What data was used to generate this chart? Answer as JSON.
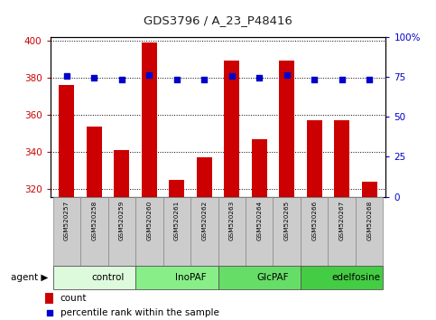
{
  "title": "GDS3796 / A_23_P48416",
  "samples": [
    "GSM520257",
    "GSM520258",
    "GSM520259",
    "GSM520260",
    "GSM520261",
    "GSM520262",
    "GSM520263",
    "GSM520264",
    "GSM520265",
    "GSM520266",
    "GSM520267",
    "GSM520268"
  ],
  "counts": [
    376,
    354,
    341,
    399,
    325,
    337,
    389,
    347,
    389,
    357,
    357,
    324
  ],
  "percentiles": [
    75.5,
    74.5,
    73.5,
    76.0,
    73.5,
    73.5,
    75.5,
    74.5,
    76.0,
    73.5,
    73.5,
    73.5
  ],
  "bar_color": "#cc0000",
  "dot_color": "#0000cc",
  "ylim_left": [
    316,
    402
  ],
  "ylim_right": [
    0,
    100
  ],
  "yticks_left": [
    320,
    340,
    360,
    380,
    400
  ],
  "yticks_right": [
    0,
    25,
    50,
    75,
    100
  ],
  "groups": [
    {
      "label": "control",
      "start": 0,
      "end": 3,
      "color": "#ddfadd"
    },
    {
      "label": "InoPAF",
      "start": 3,
      "end": 6,
      "color": "#88ee88"
    },
    {
      "label": "GlcPAF",
      "start": 6,
      "end": 9,
      "color": "#66dd66"
    },
    {
      "label": "edelfosine",
      "start": 9,
      "end": 12,
      "color": "#44cc44"
    }
  ],
  "agent_label": "agent",
  "legend_count_label": "count",
  "legend_pct_label": "percentile rank within the sample",
  "title_color": "#222222",
  "left_axis_color": "#cc0000",
  "right_axis_color": "#0000cc",
  "bar_width": 0.55,
  "dot_size": 18,
  "grid_color": "#000000",
  "sample_box_color": "#cccccc"
}
